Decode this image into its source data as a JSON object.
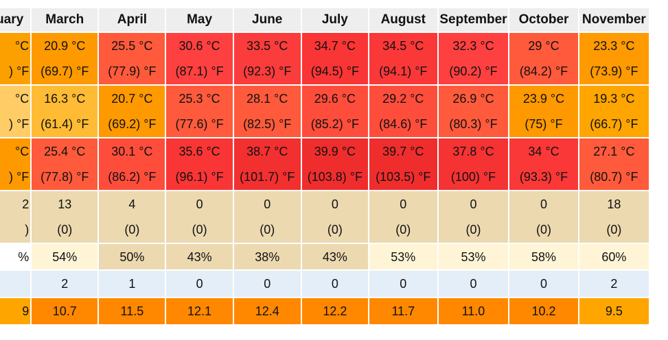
{
  "months": [
    "January",
    "March",
    "April",
    "May",
    "June",
    "July",
    "August",
    "September",
    "October",
    "November"
  ],
  "months_visible": [
    "uary",
    "March",
    "April",
    "May",
    "June",
    "July",
    "August",
    "September",
    "October",
    "November"
  ],
  "rows": [
    {
      "kind": "temp",
      "cells": [
        {
          "c": "°C",
          "f": ") °F",
          "color": "#fca000"
        },
        {
          "c": "20.9 °C",
          "f": "(69.7) °F",
          "color": "#ff9900"
        },
        {
          "c": "25.5 °C",
          "f": "(77.9) °F",
          "color": "#ff5a3c"
        },
        {
          "c": "30.6 °C",
          "f": "(87.1) °F",
          "color": "#ff4040"
        },
        {
          "c": "33.5 °C",
          "f": "(92.3) °F",
          "color": "#fb3c3c"
        },
        {
          "c": "34.7 °C",
          "f": "(94.5) °F",
          "color": "#fa3535"
        },
        {
          "c": "34.5 °C",
          "f": "(94.1) °F",
          "color": "#fb3838"
        },
        {
          "c": "32.3 °C",
          "f": "(90.2) °F",
          "color": "#ff4040"
        },
        {
          "c": "29 °C",
          "f": "(84.2) °F",
          "color": "#ff5a3c"
        },
        {
          "c": "23.3 °C",
          "f": "(73.9) °F",
          "color": "#ff9a00"
        }
      ]
    },
    {
      "kind": "temp",
      "cells": [
        {
          "c": "°C",
          "f": ") °F",
          "color": "#ffcc66"
        },
        {
          "c": "16.3 °C",
          "f": "(61.4) °F",
          "color": "#ffbb33"
        },
        {
          "c": "20.7 °C",
          "f": "(69.2) °F",
          "color": "#ff9900"
        },
        {
          "c": "25.3 °C",
          "f": "(77.6) °F",
          "color": "#ff5a3c"
        },
        {
          "c": "28.1 °C",
          "f": "(82.5) °F",
          "color": "#ff5a3c"
        },
        {
          "c": "29.6 °C",
          "f": "(85.2) °F",
          "color": "#ff4d3c"
        },
        {
          "c": "29.2 °C",
          "f": "(84.6) °F",
          "color": "#ff4d3c"
        },
        {
          "c": "26.9 °C",
          "f": "(80.3) °F",
          "color": "#ff5a3c"
        },
        {
          "c": "23.9 °C",
          "f": "(75) °F",
          "color": "#ff9900"
        },
        {
          "c": "19.3 °C",
          "f": "(66.7) °F",
          "color": "#ffa500"
        }
      ]
    },
    {
      "kind": "temp",
      "cells": [
        {
          "c": "°C",
          "f": ") °F",
          "color": "#ff9900"
        },
        {
          "c": "25.4 °C",
          "f": "(77.8) °F",
          "color": "#ff5a3c"
        },
        {
          "c": "30.1 °C",
          "f": "(86.2) °F",
          "color": "#ff4d3c"
        },
        {
          "c": "35.6 °C",
          "f": "(96.1) °F",
          "color": "#fa3535"
        },
        {
          "c": "38.7 °C",
          "f": "(101.7) °F",
          "color": "#f23030"
        },
        {
          "c": "39.9 °C",
          "f": "(103.8) °F",
          "color": "#f02d2d"
        },
        {
          "c": "39.7 °C",
          "f": "(103.5) °F",
          "color": "#f02d2d"
        },
        {
          "c": "37.8 °C",
          "f": "(100) °F",
          "color": "#f53333"
        },
        {
          "c": "34 °C",
          "f": "(93.3) °F",
          "color": "#fa3838"
        },
        {
          "c": "27.1 °C",
          "f": "(80.7) °F",
          "color": "#ff5a3c"
        }
      ]
    },
    {
      "kind": "precip",
      "cells": [
        {
          "a": "2",
          "b": ")",
          "color": "#ecd9b0"
        },
        {
          "a": "13",
          "b": "(0)",
          "color": "#ecd9b0"
        },
        {
          "a": "4",
          "b": "(0)",
          "color": "#ecd9b0"
        },
        {
          "a": "0",
          "b": "(0)",
          "color": "#ecd9b0"
        },
        {
          "a": "0",
          "b": "(0)",
          "color": "#ecd9b0"
        },
        {
          "a": "0",
          "b": "(0)",
          "color": "#ecd9b0"
        },
        {
          "a": "0",
          "b": "(0)",
          "color": "#ecd9b0"
        },
        {
          "a": "0",
          "b": "(0)",
          "color": "#ecd9b0"
        },
        {
          "a": "0",
          "b": "(0)",
          "color": "#ecd9b0"
        },
        {
          "a": "18",
          "b": "(0)",
          "color": "#ecd9b0"
        }
      ]
    },
    {
      "kind": "hum",
      "cells": [
        {
          "v": "%",
          "color": "#ffffff"
        },
        {
          "v": "54%",
          "color": "#fff5d6"
        },
        {
          "v": "50%",
          "color": "#ecd9b0"
        },
        {
          "v": "43%",
          "color": "#ecd9b0"
        },
        {
          "v": "38%",
          "color": "#ecd9b0"
        },
        {
          "v": "43%",
          "color": "#ecd9b0"
        },
        {
          "v": "53%",
          "color": "#fff5d6"
        },
        {
          "v": "53%",
          "color": "#fff5d6"
        },
        {
          "v": "58%",
          "color": "#fff5d6"
        },
        {
          "v": "60%",
          "color": "#fff5d6"
        }
      ]
    },
    {
      "kind": "days",
      "cells": [
        {
          "v": "",
          "color": "#e4eef8"
        },
        {
          "v": "2",
          "color": "#e4eef8"
        },
        {
          "v": "1",
          "color": "#e4eef8"
        },
        {
          "v": "0",
          "color": "#e4eef8"
        },
        {
          "v": "0",
          "color": "#e4eef8"
        },
        {
          "v": "0",
          "color": "#e4eef8"
        },
        {
          "v": "0",
          "color": "#e4eef8"
        },
        {
          "v": "0",
          "color": "#e4eef8"
        },
        {
          "v": "0",
          "color": "#e4eef8"
        },
        {
          "v": "2",
          "color": "#e4eef8"
        }
      ]
    },
    {
      "kind": "uv",
      "cells": [
        {
          "v": "9",
          "color": "#ffa500"
        },
        {
          "v": "10.7",
          "color": "#ff8800"
        },
        {
          "v": "11.5",
          "color": "#ff8800"
        },
        {
          "v": "12.1",
          "color": "#ff8800"
        },
        {
          "v": "12.4",
          "color": "#ff8800"
        },
        {
          "v": "12.2",
          "color": "#ff8800"
        },
        {
          "v": "11.7",
          "color": "#ff8800"
        },
        {
          "v": "11.0",
          "color": "#ff8800"
        },
        {
          "v": "10.2",
          "color": "#ff8800"
        },
        {
          "v": "9.5",
          "color": "#ffa500"
        }
      ]
    }
  ]
}
